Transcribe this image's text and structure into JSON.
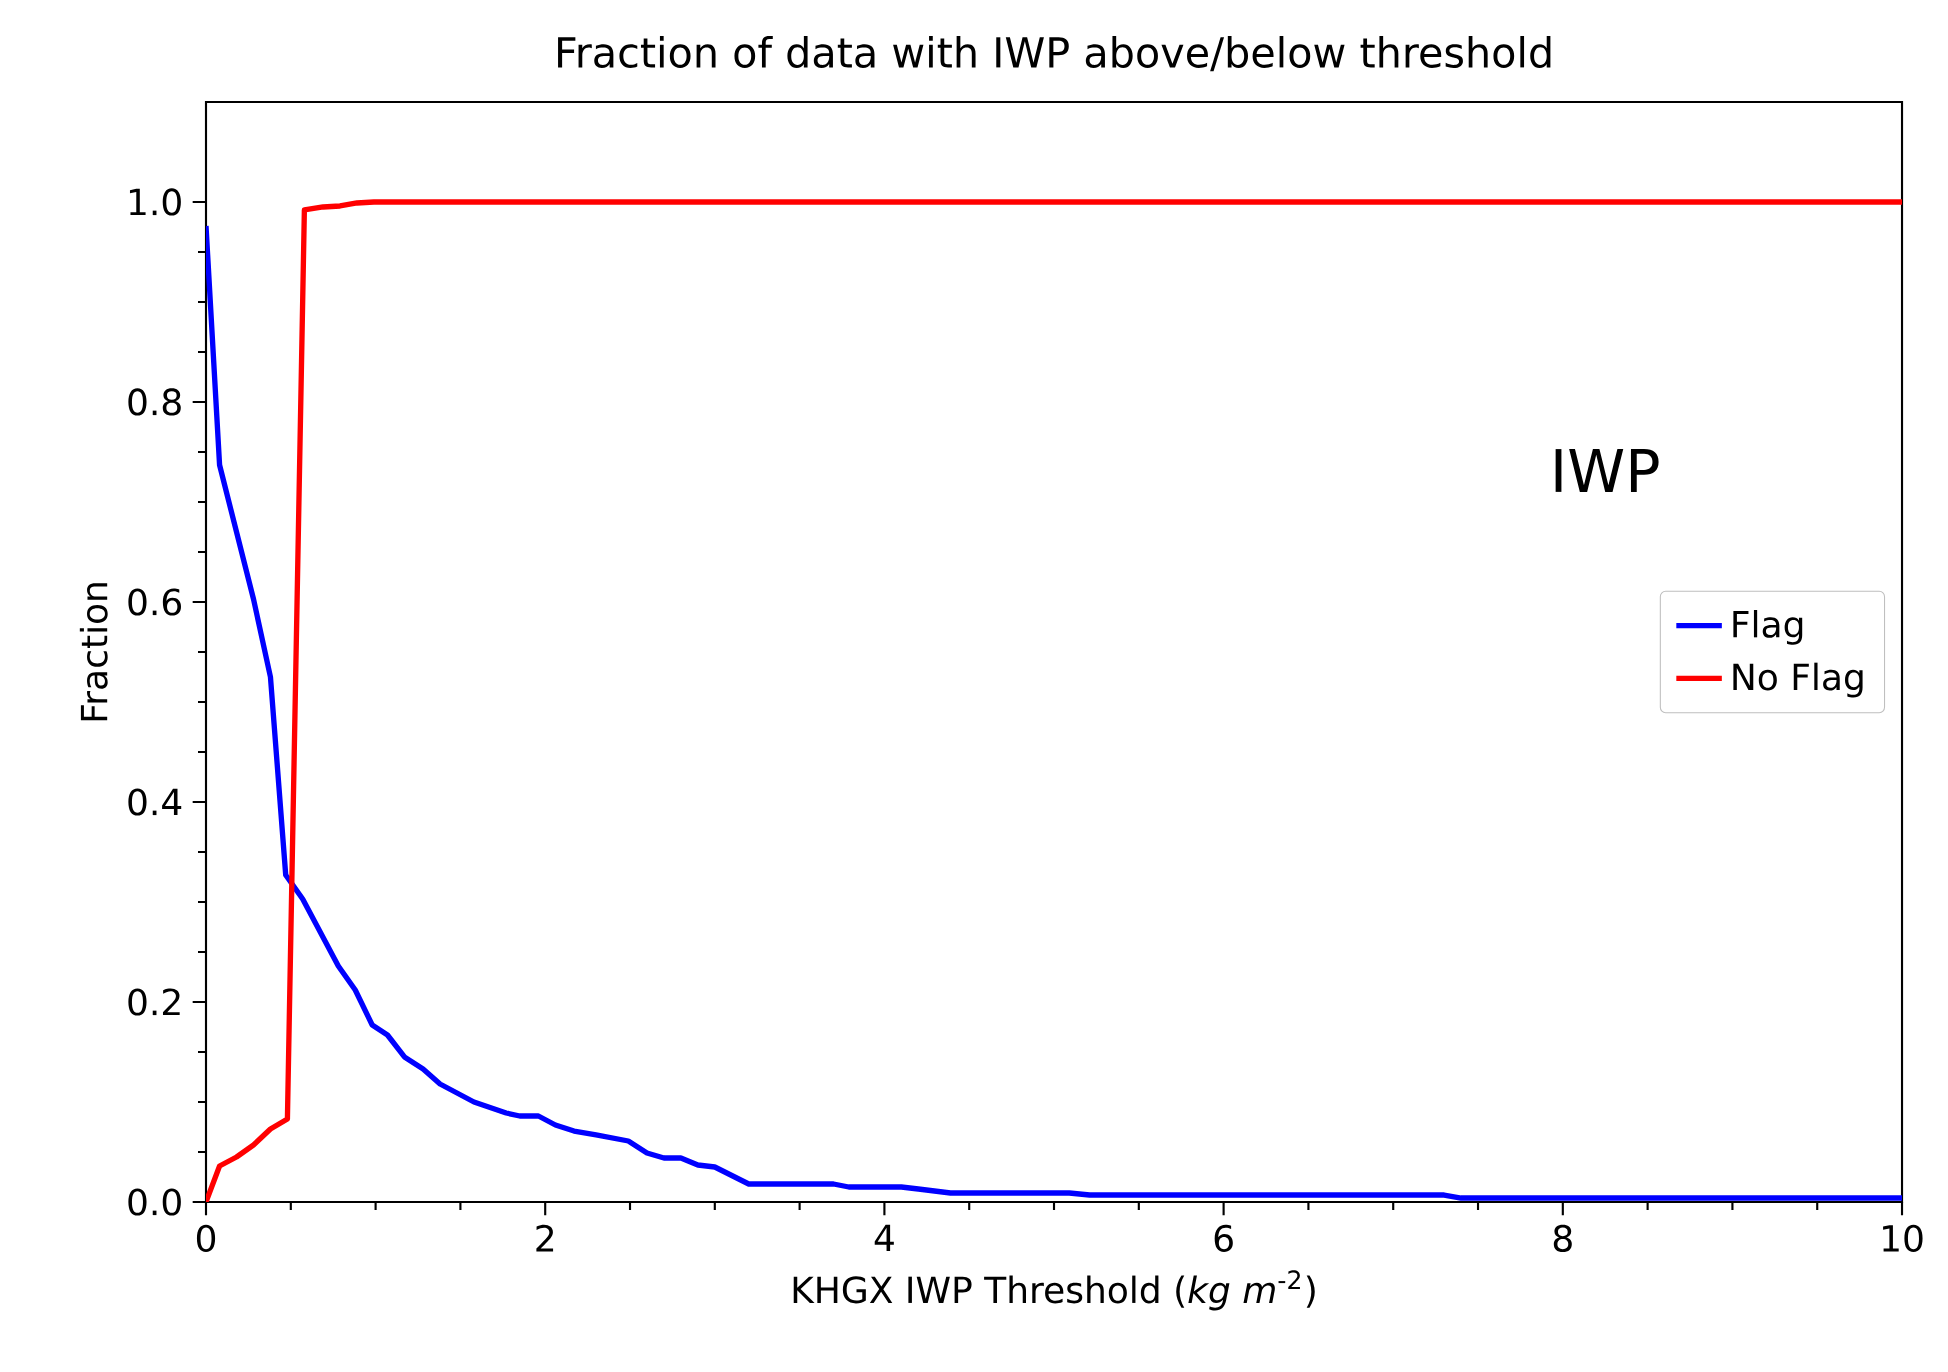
{
  "chart_data": {
    "type": "line",
    "title": "Fraction of data with IWP above/below threshold",
    "xlabel": "KHGX IWP Threshold (*kg m*$^{-2}$)",
    "ylabel": "Fraction",
    "annotations": [
      "IWP"
    ],
    "xlim": [
      0,
      10
    ],
    "xticks": [
      0,
      2,
      4,
      6,
      8,
      10
    ],
    "ylim": [
      0,
      1.1
    ],
    "yticks": [
      {
        "value": 0,
        "label": "0.0"
      },
      {
        "value": 0.2,
        "label": "0.2"
      },
      {
        "value": 0.4,
        "label": "0.4"
      },
      {
        "value": 0.6,
        "label": "0.6"
      },
      {
        "value": 0.8,
        "label": "0.8"
      },
      {
        "value": 1.0,
        "label": "1.0"
      }
    ],
    "grid": false,
    "legend": "right",
    "marker": "none",
    "line_style": "solid",
    "series": [
      {
        "name": "Flag",
        "color": "#0000ff",
        "x": [
          0,
          0.08,
          0.28,
          0.38,
          0.47,
          0.57,
          0.78,
          0.88,
          0.98,
          1.07,
          1.17,
          1.28,
          1.38,
          1.58,
          1.77,
          1.85,
          1.96,
          2.06,
          2.17,
          2.3,
          2.49,
          2.6,
          2.7,
          2.8,
          2.9,
          3.0,
          3.2,
          3.7,
          3.79,
          4.1,
          4.2,
          4.39,
          5.09,
          5.21,
          7.3,
          7.4,
          10
        ],
        "values": [
          0.976,
          0.737,
          0.603,
          0.525,
          0.327,
          0.303,
          0.236,
          0.212,
          0.177,
          0.167,
          0.145,
          0.133,
          0.118,
          0.1,
          0.089,
          0.086,
          0.086,
          0.077,
          0.071,
          0.067,
          0.061,
          0.049,
          0.044,
          0.044,
          0.037,
          0.035,
          0.018,
          0.018,
          0.015,
          0.015,
          0.013,
          0.009,
          0.009,
          0.007,
          0.007,
          0.004,
          0.004
        ]
      },
      {
        "name": "No Flag",
        "color": "#ff0000",
        "x": [
          0,
          0.08,
          0.18,
          0.28,
          0.38,
          0.48,
          0.58,
          0.69,
          0.79,
          0.89,
          0.99,
          10
        ],
        "values": [
          0,
          0.036,
          0.045,
          0.057,
          0.073,
          0.083,
          0.992,
          0.995,
          0.996,
          0.999,
          1.0,
          1.0
        ]
      }
    ]
  }
}
